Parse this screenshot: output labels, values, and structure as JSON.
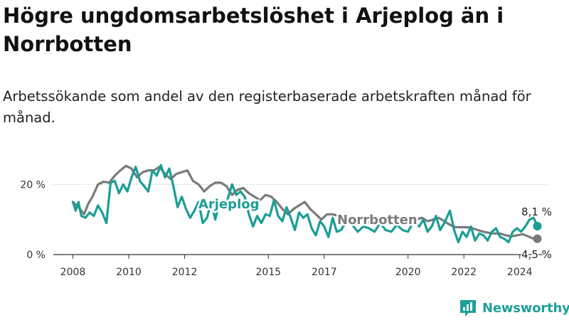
{
  "title": "Högre ungdomsarbetslöshet i Arjeplog än i Norrbotten",
  "subtitle": "Arbetssökande som andel av den registerbaserade arbetskraften månad för månad.",
  "brand": {
    "name": "Newsworthy"
  },
  "colors": {
    "arjeplog": "#1a9e95",
    "norrbotten": "#7a7a7a",
    "axis": "#333333",
    "grid": "#cccccc"
  },
  "chart_data": {
    "type": "line",
    "title": "Högre ungdomsarbetslöshet i Arjeplog än i Norrbotten",
    "xlabel": "",
    "ylabel": "",
    "ylim": [
      0,
      30
    ],
    "xlim": [
      2007.3,
      2025.0
    ],
    "grid": true,
    "y_ticks": [
      {
        "value": 0,
        "label": "0 %"
      },
      {
        "value": 20,
        "label": "20 %"
      }
    ],
    "x_ticks": [
      {
        "value": 2008,
        "label": "2008"
      },
      {
        "value": 2010,
        "label": "2010"
      },
      {
        "value": 2012,
        "label": "2012"
      },
      {
        "value": 2015,
        "label": "2015"
      },
      {
        "value": 2017,
        "label": "2017"
      },
      {
        "value": 2020,
        "label": "2020"
      },
      {
        "value": 2022,
        "label": "2022"
      },
      {
        "value": 2024,
        "label": "2024"
      }
    ],
    "series": [
      {
        "name": "Norrbotten",
        "end_label": "4,5 %",
        "points": [
          [
            2008.0,
            15.0
          ],
          [
            2008.2,
            13.5
          ],
          [
            2008.4,
            11.5
          ],
          [
            2008.55,
            14.5
          ],
          [
            2008.7,
            16.5
          ],
          [
            2008.9,
            20.0
          ],
          [
            2009.1,
            20.8
          ],
          [
            2009.3,
            20.5
          ],
          [
            2009.5,
            22.5
          ],
          [
            2009.7,
            24.0
          ],
          [
            2009.9,
            25.3
          ],
          [
            2010.1,
            24.5
          ],
          [
            2010.3,
            22.0
          ],
          [
            2010.5,
            23.5
          ],
          [
            2010.7,
            24.0
          ],
          [
            2010.9,
            24.0
          ],
          [
            2011.1,
            25.0
          ],
          [
            2011.3,
            23.0
          ],
          [
            2011.5,
            21.5
          ],
          [
            2011.7,
            23.0
          ],
          [
            2011.9,
            23.5
          ],
          [
            2012.1,
            24.0
          ],
          [
            2012.3,
            21.0
          ],
          [
            2012.5,
            20.0
          ],
          [
            2012.7,
            18.0
          ],
          [
            2012.9,
            19.5
          ],
          [
            2013.1,
            20.5
          ],
          [
            2013.3,
            20.5
          ],
          [
            2013.5,
            19.5
          ],
          [
            2013.7,
            17.0
          ],
          [
            2013.9,
            18.5
          ],
          [
            2014.1,
            19.0
          ],
          [
            2014.3,
            17.5
          ],
          [
            2014.5,
            16.5
          ],
          [
            2014.7,
            15.5
          ],
          [
            2014.9,
            17.0
          ],
          [
            2015.1,
            16.5
          ],
          [
            2015.3,
            15.0
          ],
          [
            2015.5,
            13.0
          ],
          [
            2015.7,
            11.5
          ],
          [
            2015.9,
            13.0
          ],
          [
            2016.1,
            14.0
          ],
          [
            2016.3,
            15.0
          ],
          [
            2016.5,
            13.0
          ],
          [
            2016.7,
            11.5
          ],
          [
            2016.9,
            10.0
          ],
          [
            2017.1,
            11.5
          ],
          [
            2017.3,
            11.5
          ],
          [
            2017.5,
            11.0
          ],
          [
            2017.7,
            10.5
          ],
          [
            2017.9,
            9.5
          ],
          [
            2018.1,
            10.0
          ],
          [
            2018.3,
            10.5
          ],
          [
            2018.5,
            9.5
          ],
          [
            2018.7,
            9.0
          ],
          [
            2018.9,
            9.5
          ],
          [
            2019.1,
            10.0
          ],
          [
            2019.3,
            9.5
          ],
          [
            2019.5,
            9.0
          ],
          [
            2019.7,
            9.5
          ],
          [
            2019.9,
            9.0
          ],
          [
            2020.1,
            9.0
          ],
          [
            2020.3,
            10.0
          ],
          [
            2020.5,
            10.5
          ],
          [
            2020.7,
            9.5
          ],
          [
            2020.9,
            10.0
          ],
          [
            2021.1,
            10.5
          ],
          [
            2021.3,
            9.5
          ],
          [
            2021.5,
            8.5
          ],
          [
            2021.7,
            7.8
          ],
          [
            2021.9,
            7.8
          ],
          [
            2022.1,
            7.8
          ],
          [
            2022.3,
            7.5
          ],
          [
            2022.5,
            7.0
          ],
          [
            2022.7,
            6.5
          ],
          [
            2022.9,
            6.2
          ],
          [
            2023.1,
            6.0
          ],
          [
            2023.3,
            6.0
          ],
          [
            2023.5,
            5.5
          ],
          [
            2023.7,
            5.2
          ],
          [
            2023.9,
            5.5
          ],
          [
            2024.1,
            5.8
          ],
          [
            2024.3,
            5.2
          ],
          [
            2024.5,
            4.5
          ],
          [
            2024.63,
            4.5
          ]
        ]
      },
      {
        "name": "Arjeplog",
        "end_label": "8,1 %",
        "points": [
          [
            2008.0,
            15.0
          ],
          [
            2008.1,
            12.5
          ],
          [
            2008.2,
            15.0
          ],
          [
            2008.3,
            11.0
          ],
          [
            2008.45,
            10.5
          ],
          [
            2008.6,
            12.0
          ],
          [
            2008.75,
            11.0
          ],
          [
            2008.9,
            14.0
          ],
          [
            2009.05,
            12.0
          ],
          [
            2009.2,
            9.0
          ],
          [
            2009.35,
            20.5
          ],
          [
            2009.5,
            21.0
          ],
          [
            2009.65,
            17.5
          ],
          [
            2009.8,
            20.0
          ],
          [
            2009.95,
            18.0
          ],
          [
            2010.1,
            22.0
          ],
          [
            2010.25,
            25.0
          ],
          [
            2010.4,
            21.0
          ],
          [
            2010.55,
            19.5
          ],
          [
            2010.7,
            18.0
          ],
          [
            2010.85,
            24.0
          ],
          [
            2011.0,
            22.5
          ],
          [
            2011.15,
            25.5
          ],
          [
            2011.3,
            22.0
          ],
          [
            2011.45,
            24.5
          ],
          [
            2011.6,
            19.5
          ],
          [
            2011.75,
            13.5
          ],
          [
            2011.9,
            16.5
          ],
          [
            2012.05,
            13.0
          ],
          [
            2012.2,
            10.5
          ],
          [
            2012.35,
            12.5
          ],
          [
            2012.5,
            15.0
          ],
          [
            2012.65,
            9.0
          ],
          [
            2012.8,
            10.5
          ],
          [
            2012.95,
            15.0
          ],
          [
            2013.1,
            10.0
          ],
          [
            2013.25,
            15.0
          ],
          [
            2013.4,
            13.5
          ],
          [
            2013.55,
            16.0
          ],
          [
            2013.7,
            20.0
          ],
          [
            2013.85,
            17.0
          ],
          [
            2014.0,
            18.0
          ],
          [
            2014.15,
            16.5
          ],
          [
            2014.3,
            11.5
          ],
          [
            2014.45,
            8.0
          ],
          [
            2014.6,
            11.0
          ],
          [
            2014.75,
            9.0
          ],
          [
            2014.9,
            11.5
          ],
          [
            2015.05,
            11.0
          ],
          [
            2015.2,
            15.5
          ],
          [
            2015.35,
            11.0
          ],
          [
            2015.5,
            9.5
          ],
          [
            2015.65,
            13.5
          ],
          [
            2015.8,
            10.5
          ],
          [
            2015.95,
            7.0
          ],
          [
            2016.1,
            12.0
          ],
          [
            2016.25,
            10.5
          ],
          [
            2016.4,
            11.5
          ],
          [
            2016.55,
            7.5
          ],
          [
            2016.7,
            5.5
          ],
          [
            2016.85,
            9.5
          ],
          [
            2017.0,
            8.0
          ],
          [
            2017.15,
            5.0
          ],
          [
            2017.3,
            10.5
          ],
          [
            2017.45,
            6.5
          ],
          [
            2017.6,
            7.0
          ],
          [
            2017.8,
            9.5
          ],
          [
            2018.0,
            8.5
          ],
          [
            2018.2,
            6.5
          ],
          [
            2018.4,
            8.0
          ],
          [
            2018.6,
            7.5
          ],
          [
            2018.8,
            6.5
          ],
          [
            2019.0,
            9.0
          ],
          [
            2019.2,
            7.0
          ],
          [
            2019.4,
            6.5
          ],
          [
            2019.6,
            8.5
          ],
          [
            2019.8,
            7.0
          ],
          [
            2020.0,
            6.5
          ],
          [
            2020.2,
            9.5
          ],
          [
            2020.4,
            8.0
          ],
          [
            2020.55,
            10.0
          ],
          [
            2020.7,
            6.5
          ],
          [
            2020.85,
            8.0
          ],
          [
            2021.0,
            11.0
          ],
          [
            2021.15,
            7.0
          ],
          [
            2021.3,
            9.0
          ],
          [
            2021.5,
            12.5
          ],
          [
            2021.65,
            7.0
          ],
          [
            2021.8,
            3.5
          ],
          [
            2021.95,
            6.5
          ],
          [
            2022.1,
            5.0
          ],
          [
            2022.25,
            8.0
          ],
          [
            2022.4,
            4.0
          ],
          [
            2022.55,
            6.0
          ],
          [
            2022.7,
            5.5
          ],
          [
            2022.85,
            4.0
          ],
          [
            2023.0,
            6.5
          ],
          [
            2023.15,
            7.5
          ],
          [
            2023.3,
            5.0
          ],
          [
            2023.45,
            4.5
          ],
          [
            2023.6,
            3.5
          ],
          [
            2023.75,
            6.5
          ],
          [
            2023.9,
            7.5
          ],
          [
            2024.05,
            6.5
          ],
          [
            2024.2,
            8.0
          ],
          [
            2024.35,
            10.0
          ],
          [
            2024.5,
            10.5
          ],
          [
            2024.63,
            8.1
          ]
        ]
      }
    ]
  }
}
